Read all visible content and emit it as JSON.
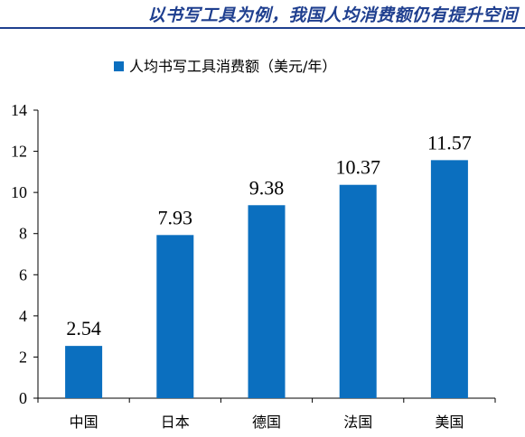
{
  "heading": "以书写工具为例，我国人均消费额仍有提升空间",
  "chart_data": {
    "type": "bar",
    "categories": [
      "中国",
      "日本",
      "德国",
      "法国",
      "美国"
    ],
    "series": [
      {
        "name": "人均书写工具消费额（美元/年）",
        "values": [
          2.54,
          7.93,
          9.38,
          10.37,
          11.57
        ],
        "color": "#0b6fbf"
      }
    ],
    "data_labels": [
      "2.54",
      "7.93",
      "9.38",
      "10.37",
      "11.57"
    ],
    "yticks": [
      "0",
      "2",
      "4",
      "6",
      "8",
      "10",
      "12",
      "14"
    ],
    "ylim": [
      0,
      14
    ],
    "grid": false,
    "legend_position": "top-center",
    "title": "",
    "xlabel": "",
    "ylabel": ""
  }
}
